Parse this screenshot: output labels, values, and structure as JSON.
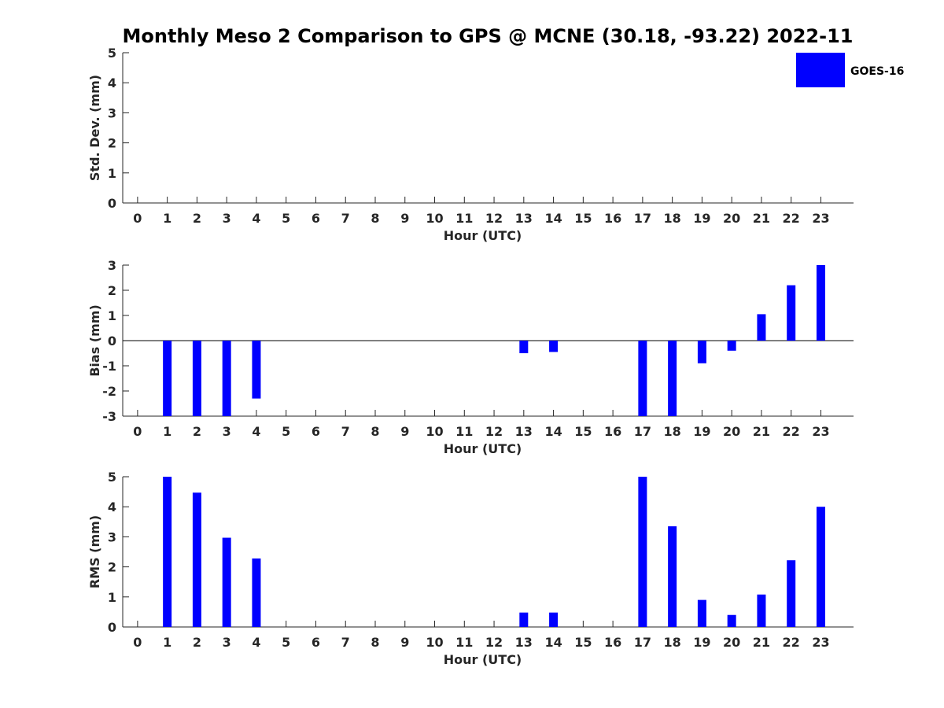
{
  "title": "Monthly Meso 2 Comparison to GPS @ MCNE (30.18, -93.22) 2022-11",
  "colors": {
    "bar": "#0000ff",
    "axis": "#262626",
    "zero_line": "#000000"
  },
  "legend": {
    "label": "GOES-16",
    "placement": "top-right"
  },
  "chart_data": [
    {
      "type": "bar",
      "xlabel": "Hour (UTC)",
      "ylabel": "Std. Dev. (mm)",
      "ylim": [
        0,
        5
      ],
      "yticks": [
        0,
        1,
        2,
        3,
        4,
        5
      ],
      "categories": [
        "0",
        "1",
        "2",
        "3",
        "4",
        "5",
        "6",
        "7",
        "8",
        "9",
        "10",
        "11",
        "12",
        "13",
        "14",
        "15",
        "16",
        "17",
        "18",
        "19",
        "20",
        "21",
        "22",
        "23"
      ],
      "series": [
        {
          "name": "GOES-16",
          "values": [
            null,
            null,
            null,
            null,
            null,
            null,
            null,
            null,
            null,
            null,
            null,
            null,
            null,
            null,
            null,
            null,
            null,
            null,
            null,
            null,
            null,
            null,
            null,
            null
          ]
        }
      ],
      "grid": false
    },
    {
      "type": "bar",
      "xlabel": "Hour (UTC)",
      "ylabel": "Bias (mm)",
      "ylim": [
        -3,
        3
      ],
      "yticks": [
        -3,
        -2,
        -1,
        0,
        1,
        2,
        3
      ],
      "categories": [
        "0",
        "1",
        "2",
        "3",
        "4",
        "5",
        "6",
        "7",
        "8",
        "9",
        "10",
        "11",
        "12",
        "13",
        "14",
        "15",
        "16",
        "17",
        "18",
        "19",
        "20",
        "21",
        "22",
        "23"
      ],
      "series": [
        {
          "name": "GOES-16",
          "values": [
            null,
            -3.0,
            -3.0,
            -3.0,
            -2.3,
            null,
            null,
            null,
            null,
            null,
            null,
            null,
            null,
            -0.5,
            -0.45,
            null,
            null,
            -3.0,
            -3.0,
            -0.9,
            -0.4,
            1.05,
            2.2,
            3.0
          ]
        }
      ],
      "grid": false
    },
    {
      "type": "bar",
      "xlabel": "Hour (UTC)",
      "ylabel": "RMS (mm)",
      "ylim": [
        0,
        5
      ],
      "yticks": [
        0,
        1,
        2,
        3,
        4,
        5
      ],
      "categories": [
        "0",
        "1",
        "2",
        "3",
        "4",
        "5",
        "6",
        "7",
        "8",
        "9",
        "10",
        "11",
        "12",
        "13",
        "14",
        "15",
        "16",
        "17",
        "18",
        "19",
        "20",
        "21",
        "22",
        "23"
      ],
      "series": [
        {
          "name": "GOES-16",
          "values": [
            null,
            5.0,
            4.47,
            2.97,
            2.28,
            null,
            null,
            null,
            null,
            null,
            null,
            null,
            null,
            0.48,
            0.48,
            null,
            null,
            5.0,
            3.35,
            0.9,
            0.4,
            1.08,
            2.22,
            4.0
          ]
        }
      ],
      "grid": false
    }
  ]
}
